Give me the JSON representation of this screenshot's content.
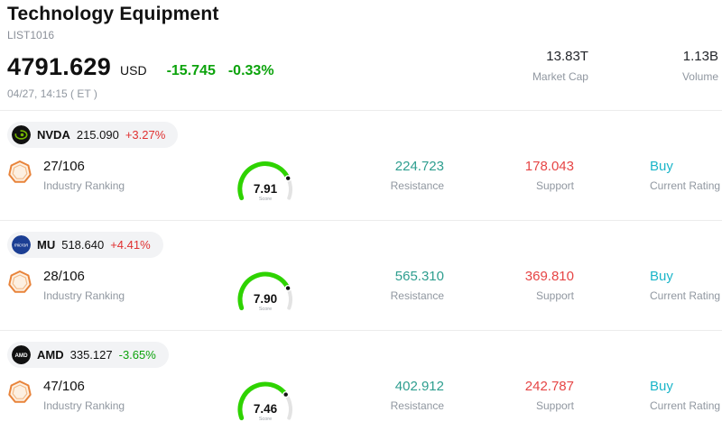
{
  "header": {
    "title": "Technology Equipment",
    "subtitle": "LIST1016",
    "price": "4791.629",
    "currency": "USD",
    "change_value": "-15.745",
    "change_pct": "-0.33%",
    "timestamp": "04/27, 14:15 ( ET )",
    "stats": [
      {
        "value": "13.83T",
        "label": "Market Cap"
      },
      {
        "value": "1.13B",
        "label": "Volume"
      }
    ]
  },
  "colors": {
    "up": "#e03131",
    "down": "#0ca30c",
    "resistance": "#2e9e8f",
    "support": "#e64545",
    "rating": "#1ab5c9",
    "gauge": "#2ed300",
    "gauge_track": "#e3e3e3"
  },
  "rows": [
    {
      "ticker": "NVDA",
      "price": "215.090",
      "change": "+3.27%",
      "change_color": "#e03131",
      "ranking": "27/106",
      "ranking_label": "Industry Ranking",
      "score": "7.91",
      "score_max": 10,
      "score_label": "Score",
      "resistance": "224.723",
      "resistance_label": "Resistance",
      "support": "178.043",
      "support_label": "Support",
      "rating": "Buy",
      "rating_label": "Current Rating"
    },
    {
      "ticker": "MU",
      "price": "518.640",
      "change": "+4.41%",
      "change_color": "#e03131",
      "ranking": "28/106",
      "ranking_label": "Industry Ranking",
      "score": "7.90",
      "score_max": 10,
      "score_label": "Score",
      "resistance": "565.310",
      "resistance_label": "Resistance",
      "support": "369.810",
      "support_label": "Support",
      "rating": "Buy",
      "rating_label": "Current Rating"
    },
    {
      "ticker": "AMD",
      "price": "335.127",
      "change": "-3.65%",
      "change_color": "#0ca30c",
      "ranking": "47/106",
      "ranking_label": "Industry Ranking",
      "score": "7.46",
      "score_max": 10,
      "score_label": "Score",
      "resistance": "402.912",
      "resistance_label": "Resistance",
      "support": "242.787",
      "support_label": "Support",
      "rating": "Buy",
      "rating_label": "Current Rating"
    }
  ]
}
